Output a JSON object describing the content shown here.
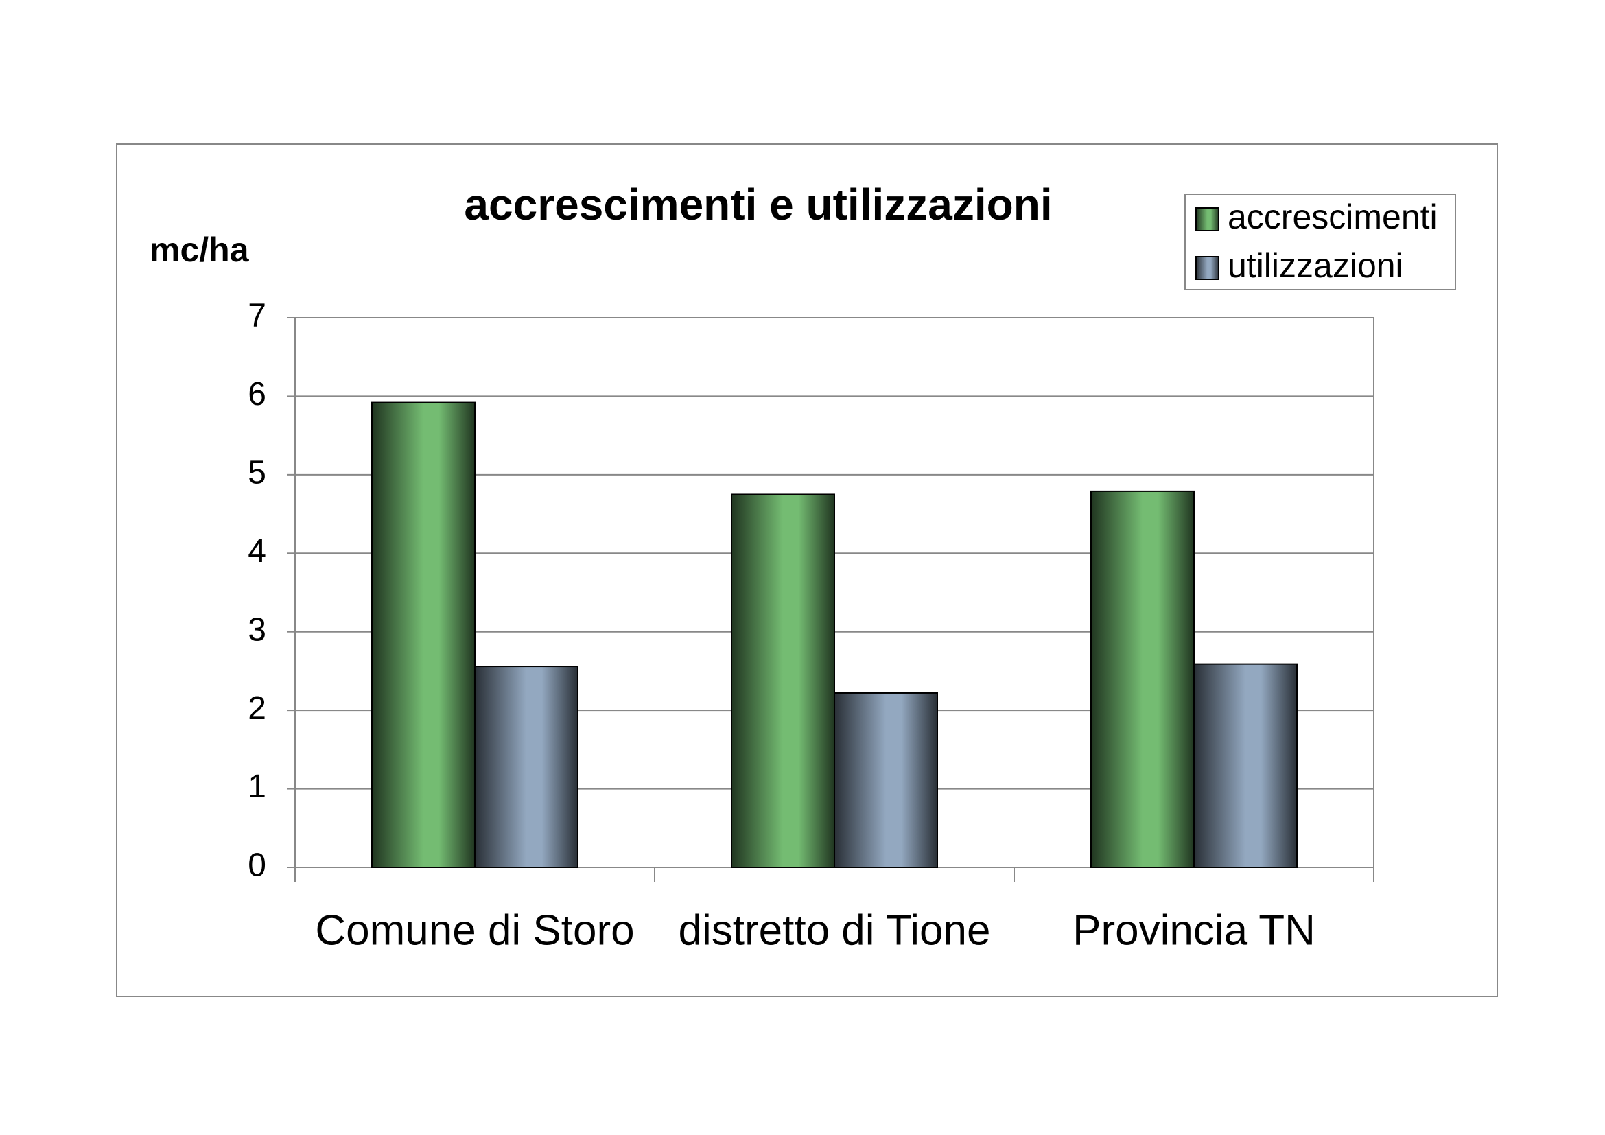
{
  "chart_data": {
    "type": "bar",
    "title": "accrescimenti e utilizzazioni",
    "y_label": "mc/ha",
    "categories": [
      "Comune di Storo",
      "distretto di Tione",
      "Provincia TN"
    ],
    "series": [
      {
        "name": "accrescimenti",
        "color": "#74bc72",
        "values": [
          5.92,
          4.75,
          4.79
        ]
      },
      {
        "name": "utilizzazioni",
        "color": "#93a8c0",
        "values": [
          2.56,
          2.22,
          2.59
        ]
      }
    ],
    "ylim": [
      0,
      7
    ],
    "yticks": [
      0,
      1,
      2,
      3,
      4,
      5,
      6,
      7
    ],
    "grid": true,
    "legend": "upper right"
  }
}
